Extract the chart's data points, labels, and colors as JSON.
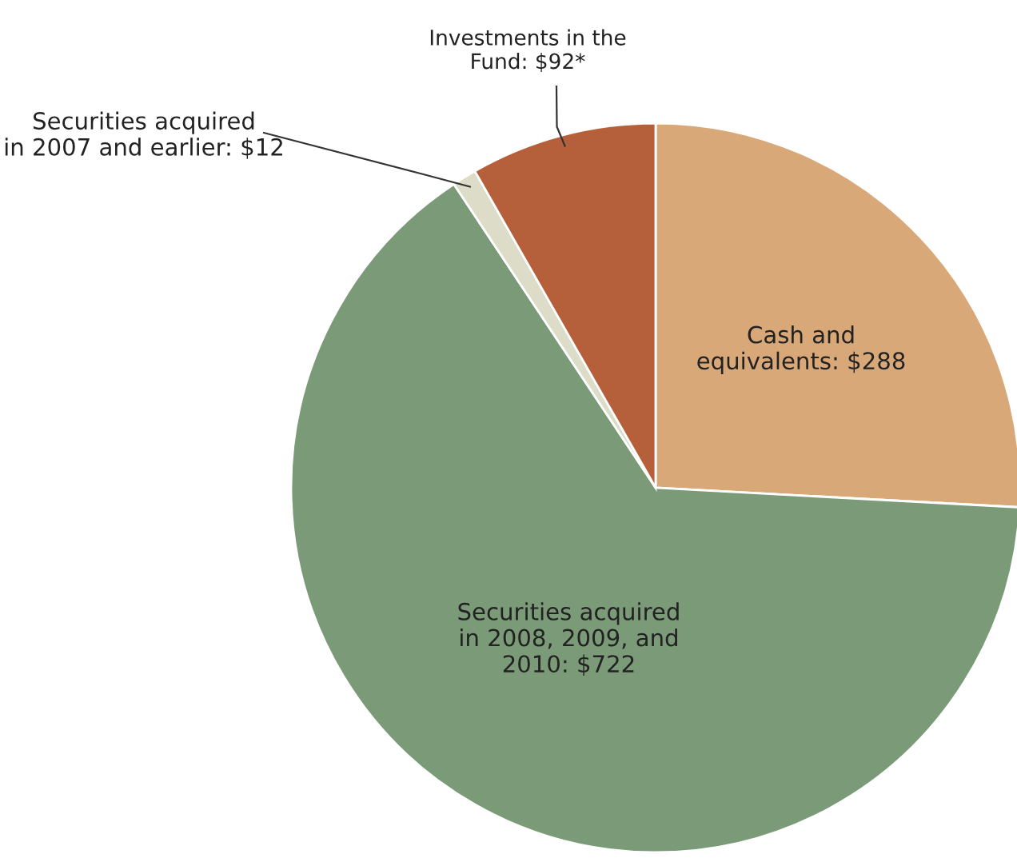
{
  "chart_data": {
    "type": "pie",
    "categories": [
      "Cash and\nequivalents",
      "Securities acquired\nin 2008, 2009, and\n2010",
      "Securities acquired\nin 2007 and earlier",
      "Investments in the\nFund"
    ],
    "values": [
      288,
      722,
      12,
      92
    ],
    "value_labels": [
      "$288",
      "$722",
      "$12",
      "$92*"
    ],
    "colors": [
      "#d9a878",
      "#7a9a78",
      "#dcdcc8",
      "#b5603a"
    ]
  }
}
